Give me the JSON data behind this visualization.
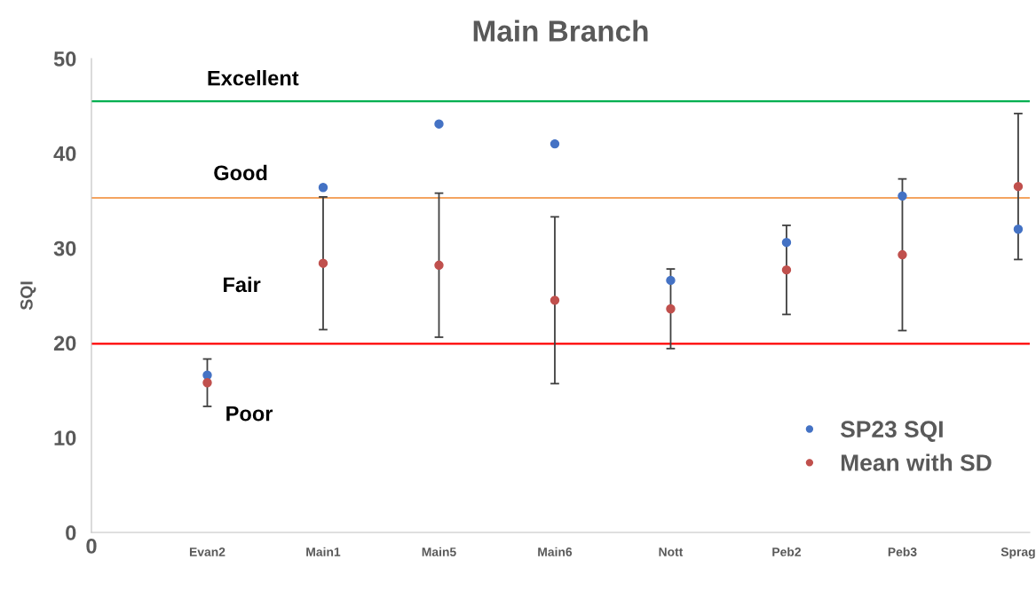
{
  "chart_data": {
    "type": "scatter",
    "title": "Main Branch",
    "ylabel": "SQI",
    "categories": [
      "Evan2",
      "Main1",
      "Main5",
      "Main6",
      "Nott",
      "Peb2",
      "Peb3",
      "Sprag"
    ],
    "ylim": [
      0,
      50
    ],
    "yticks": [
      0,
      10,
      20,
      30,
      40,
      50
    ],
    "series": [
      {
        "name": "SP23 SQI",
        "color": "#4472c4",
        "values": [
          16.6,
          36.4,
          43.1,
          41.0,
          26.6,
          30.6,
          35.5,
          32.0
        ]
      },
      {
        "name": "Mean with SD",
        "color": "#c0504d",
        "values": [
          15.8,
          28.4,
          28.2,
          24.5,
          23.6,
          27.7,
          29.3,
          36.5
        ],
        "errors": [
          2.5,
          7.0,
          7.6,
          8.8,
          4.2,
          4.7,
          8.0,
          7.7
        ]
      }
    ],
    "ref_lines": [
      {
        "axis": "y",
        "value": 45.5,
        "color": "#00b050"
      },
      {
        "axis": "y",
        "value": 35.3,
        "color": "#f4a460"
      },
      {
        "axis": "y",
        "value": 19.9,
        "color": "#ff0000"
      }
    ],
    "annotations": [
      "Excellent",
      "Good",
      "Fair",
      "Poor",
      "0"
    ],
    "grid": false,
    "legend": "bottom right",
    "marker": "circle"
  }
}
